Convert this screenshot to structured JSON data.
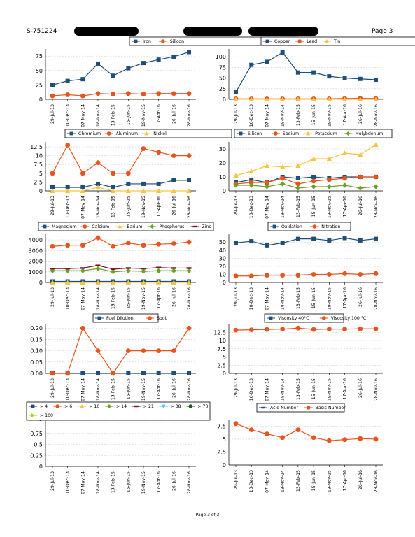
{
  "header": {
    "report_id": "S-751224",
    "page_label": "Page 3"
  },
  "footer": {
    "page_text": "Page 3 of 3"
  },
  "dates": [
    "29-Jul-13",
    "10-Dec-13",
    "07-May-14",
    "18-Nov-14",
    "13-Feb-15",
    "15-Jun-15",
    "19-Nov-15",
    "17-Apr-16",
    "26-Jul-16",
    "28-Nov-16"
  ],
  "colors": {
    "blue": "#1f4e79",
    "orange": "#e8541e",
    "yellow": "#f5c542",
    "green": "#6aa121",
    "maroon": "#7b1030",
    "cyan": "#4fc3f7",
    "darkgreen": "#1b5e20",
    "lime": "#a6d608"
  },
  "chart_data": [
    {
      "type": "line",
      "id": "c1",
      "categories_ref": "dates",
      "ylim": [
        0,
        85
      ],
      "yticks": [
        0,
        25,
        50,
        75
      ],
      "series": [
        {
          "name": "Iron",
          "color": "#1f4e79",
          "marker": "square",
          "values": [
            25,
            32,
            35,
            62,
            41,
            54,
            63,
            69,
            74,
            82
          ]
        },
        {
          "name": "Silicon",
          "color": "#e8541e",
          "marker": "circle",
          "values": [
            6,
            8,
            6,
            10,
            9,
            10,
            9,
            10,
            10,
            10
          ]
        }
      ]
    },
    {
      "type": "line",
      "id": "c2",
      "categories_ref": "dates",
      "ylim": [
        0,
        115
      ],
      "yticks": [
        0,
        25,
        50,
        75,
        100
      ],
      "series": [
        {
          "name": "Copper",
          "color": "#1f4e79",
          "marker": "square",
          "values": [
            17,
            81,
            88,
            110,
            63,
            63,
            54,
            50,
            48,
            46
          ]
        },
        {
          "name": "Lead",
          "color": "#e8541e",
          "marker": "circle",
          "values": [
            1,
            1,
            1,
            1,
            1,
            1,
            1,
            2,
            2,
            2
          ]
        },
        {
          "name": "Tin",
          "color": "#f5c542",
          "marker": "triangle",
          "values": [
            0,
            0,
            0,
            0,
            0,
            0,
            0,
            0,
            0,
            0
          ]
        }
      ]
    },
    {
      "type": "line",
      "id": "c3",
      "categories_ref": "dates",
      "ylim": [
        0,
        13.5
      ],
      "yticks": [
        0,
        2.5,
        5,
        7.5,
        10,
        12.5
      ],
      "series": [
        {
          "name": "Chromium",
          "color": "#1f4e79",
          "marker": "square",
          "values": [
            1,
            1,
            1,
            2,
            1,
            2,
            2,
            2,
            3,
            3
          ]
        },
        {
          "name": "Aluminum",
          "color": "#e8541e",
          "marker": "circle",
          "values": [
            5,
            13,
            5,
            8,
            5,
            5,
            12,
            11,
            10,
            10
          ]
        },
        {
          "name": "Nickel",
          "color": "#f5c542",
          "marker": "triangle",
          "values": [
            0,
            0,
            0,
            1,
            0,
            0,
            0,
            0,
            0,
            0
          ]
        }
      ]
    },
    {
      "type": "line",
      "id": "c4",
      "categories_ref": "dates",
      "ylim": [
        0,
        34
      ],
      "yticks": [
        0,
        10,
        20,
        30
      ],
      "series": [
        {
          "name": "Silicon",
          "color": "#1f4e79",
          "marker": "square",
          "values": [
            6,
            8,
            6,
            10,
            9,
            10,
            9,
            10,
            10,
            10
          ]
        },
        {
          "name": "Sodium",
          "color": "#e8541e",
          "marker": "circle",
          "values": [
            5,
            6,
            6,
            9,
            5,
            7,
            8,
            9,
            10,
            10
          ]
        },
        {
          "name": "Potassium",
          "color": "#f5c542",
          "marker": "triangle",
          "values": [
            11,
            14,
            18,
            17,
            18,
            23,
            23,
            27,
            26,
            33
          ]
        },
        {
          "name": "Molybdenum",
          "color": "#6aa121",
          "marker": "diamond",
          "values": [
            4,
            4,
            3,
            5,
            2,
            3,
            3,
            4,
            2,
            3
          ]
        }
      ]
    },
    {
      "type": "line",
      "id": "c5",
      "categories_ref": "dates",
      "ylim": [
        0,
        4400
      ],
      "yticks": [
        0,
        1000,
        2000,
        3000,
        4000
      ],
      "series": [
        {
          "name": "Magnesium",
          "color": "#1f4e79",
          "marker": "square",
          "values": [
            100,
            100,
            100,
            100,
            100,
            100,
            100,
            100,
            100,
            100
          ]
        },
        {
          "name": "Calcium",
          "color": "#e8541e",
          "marker": "circle",
          "values": [
            3400,
            3500,
            3500,
            4200,
            3400,
            3700,
            3500,
            3600,
            3650,
            3800
          ]
        },
        {
          "name": "Barium",
          "color": "#f5c542",
          "marker": "triangle",
          "values": [
            0,
            0,
            0,
            0,
            0,
            0,
            0,
            0,
            0,
            0
          ]
        },
        {
          "name": "Phosphorus",
          "color": "#6aa121",
          "marker": "diamond",
          "values": [
            1100,
            1100,
            1100,
            1300,
            1000,
            1100,
            1050,
            1100,
            1100,
            1100
          ]
        },
        {
          "name": "Zinc",
          "color": "#7b1030",
          "marker": "dash",
          "values": [
            1300,
            1300,
            1350,
            1600,
            1250,
            1350,
            1300,
            1400,
            1350,
            1350
          ]
        }
      ]
    },
    {
      "type": "line",
      "id": "c6",
      "categories_ref": "dates",
      "ylim": [
        0,
        58
      ],
      "yticks": [
        0,
        10,
        20,
        30,
        40,
        50
      ],
      "series": [
        {
          "name": "Oxidation",
          "color": "#1f4e79",
          "marker": "square",
          "values": [
            49,
            51,
            46,
            49,
            54,
            54,
            52,
            55,
            52,
            54
          ]
        },
        {
          "name": "Nitration",
          "color": "#e8541e",
          "marker": "circle",
          "values": [
            8,
            8,
            9,
            9,
            9,
            10,
            10,
            11,
            10,
            11
          ]
        }
      ]
    },
    {
      "type": "line",
      "id": "c7",
      "categories_ref": "dates",
      "ylim": [
        0,
        0.21
      ],
      "yticks": [
        0.0,
        0.05,
        0.1,
        0.15,
        0.2
      ],
      "tick_decimals": 2,
      "series": [
        {
          "name": "Fuel Dilution",
          "color": "#1f4e79",
          "marker": "square",
          "values": [
            0,
            0,
            0,
            0,
            0,
            0,
            0,
            0,
            0,
            0
          ]
        },
        {
          "name": "Soot",
          "color": "#e8541e",
          "marker": "circle",
          "values": [
            0,
            0,
            0.2,
            0.1,
            0,
            0.1,
            0.1,
            0.1,
            0.1,
            0.2
          ]
        }
      ]
    },
    {
      "type": "line",
      "id": "c8",
      "categories_ref": "dates",
      "ylim": [
        0,
        14.5
      ],
      "yticks": [
        0,
        2.5,
        5,
        7.5,
        10,
        12.5
      ],
      "series": [
        {
          "name": "Viscosity 40°C",
          "color": "#1f4e79",
          "marker": "square",
          "values": []
        },
        {
          "name": "Viscosity 100 °C",
          "color": "#e8541e",
          "marker": "circle",
          "values": [
            13.2,
            13.3,
            13.4,
            13.5,
            13.8,
            13.4,
            13.5,
            13.5,
            13.6,
            13.6
          ]
        }
      ]
    },
    {
      "type": "line",
      "id": "c9",
      "categories_ref": "dates",
      "ylim": [
        0,
        1
      ],
      "yticks": [
        0,
        0.25,
        0.5,
        0.75,
        1
      ],
      "series": [
        {
          "name": "> 4",
          "color": "#1f4e79",
          "marker": "square",
          "values": []
        },
        {
          "name": "> 6",
          "color": "#e8541e",
          "marker": "circle",
          "values": []
        },
        {
          "name": "> 10",
          "color": "#f5c542",
          "marker": "triangle",
          "values": []
        },
        {
          "name": "> 14",
          "color": "#6aa121",
          "marker": "diamond",
          "values": []
        },
        {
          "name": "> 21",
          "color": "#7b1030",
          "marker": "dash",
          "values": []
        },
        {
          "name": "> 38",
          "color": "#4fc3f7",
          "marker": "triangle-down",
          "values": []
        },
        {
          "name": "> 70",
          "color": "#1b5e20",
          "marker": "circle",
          "values": []
        },
        {
          "name": "> 100",
          "color": "#a6d608",
          "marker": "triangle-right",
          "values": []
        }
      ]
    },
    {
      "type": "line",
      "id": "c10",
      "categories_ref": "dates",
      "ylim": [
        0,
        8.5
      ],
      "yticks": [
        0,
        2.5,
        5,
        7.5
      ],
      "series": [
        {
          "name": "Acid Number",
          "color": "#1f4e79",
          "marker": "dash",
          "values": []
        },
        {
          "name": "Basic Number",
          "color": "#e8541e",
          "marker": "circle",
          "values": [
            8.0,
            6.8,
            6.0,
            5.3,
            6.8,
            5.3,
            4.7,
            4.9,
            5.1,
            5.0
          ]
        }
      ]
    }
  ]
}
